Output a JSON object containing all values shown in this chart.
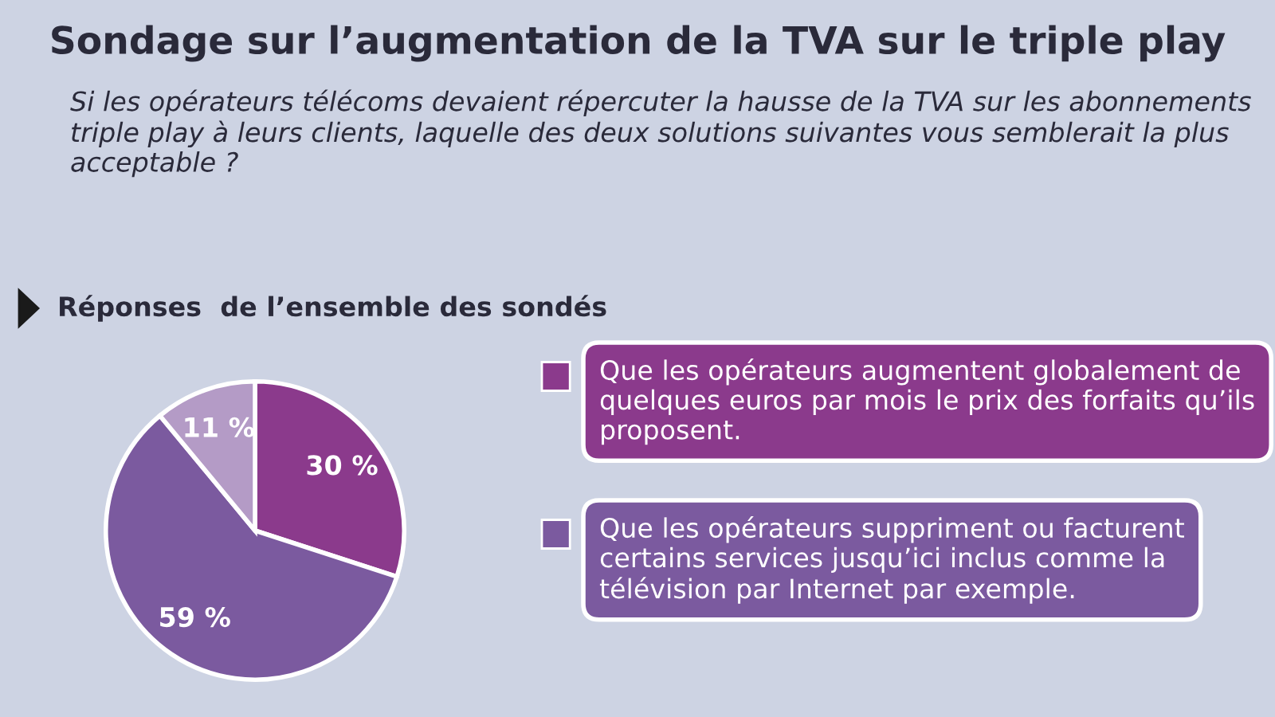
{
  "chart_data": {
    "type": "pie",
    "title": "Sondage sur l’augmentation de la TVA sur le triple play",
    "subtitle": "Si les opérateurs télécoms devaient répercuter la hausse de la TVA sur les abonnements triple play à leurs clients, laquelle des deux solutions suivantes vous semblerait la plus acceptable ?",
    "annotations": [
      "Réponses  de l’ensemble des sondés"
    ],
    "categories": [
      "Que les opérateurs augmentent globalement de quelques euros par mois le prix des forfaits qu’ils proposent.",
      "Que les opérateurs suppriment ou facturent certains services jusqu’ici inclus comme la télévision par Internet par exemple.",
      null
    ],
    "values": [
      30,
      59,
      11
    ],
    "value_labels": [
      "30 %",
      "59 %",
      "11 %"
    ],
    "colors": [
      "#8b3a8c",
      "#7b5a9f",
      "#b49bc6"
    ],
    "legend": "right"
  }
}
